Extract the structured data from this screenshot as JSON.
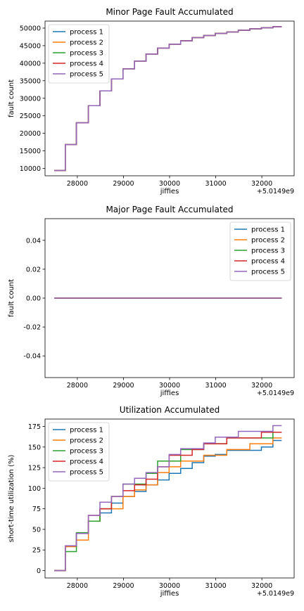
{
  "chart_data": [
    {
      "type": "line",
      "title": "Minor Page Fault Accumulated",
      "xlabel": "jiffies",
      "ylabel": "fault count",
      "offset_text": "+5.0149e9",
      "xlim": [
        27300,
        32700
      ],
      "ylim": [
        7900,
        52000
      ],
      "x_ticks": [
        28000,
        29000,
        30000,
        31000,
        32000
      ],
      "y_ticks": [
        10000,
        15000,
        20000,
        25000,
        30000,
        35000,
        40000,
        45000,
        50000
      ],
      "legend_position": "top-left",
      "grid": false,
      "step": "post",
      "series": [
        {
          "name": "process 1",
          "color": "#1f77b4"
        },
        {
          "name": "process 2",
          "color": "#ff7f0e"
        },
        {
          "name": "process 3",
          "color": "#2ca02c"
        },
        {
          "name": "process 4",
          "color": "#d62728"
        },
        {
          "name": "process 5",
          "color": "#9467bd"
        }
      ],
      "shared": {
        "x": [
          27500,
          27740,
          27980,
          28240,
          28490,
          28740,
          28990,
          29240,
          29490,
          29740,
          29990,
          30240,
          30490,
          30740,
          30990,
          31240,
          31490,
          31740,
          31990,
          32240,
          32430
        ],
        "y": [
          9400,
          16800,
          23000,
          27900,
          32100,
          35500,
          38400,
          40600,
          42600,
          44300,
          45400,
          46400,
          47300,
          47900,
          48500,
          48900,
          49400,
          49800,
          50100,
          50400,
          50400
        ]
      }
    },
    {
      "type": "line",
      "title": "Major Page Fault Accumulated",
      "xlabel": "jiffies",
      "ylabel": "fault count",
      "offset_text": "+5.0149e9",
      "xlim": [
        27300,
        32700
      ],
      "ylim": [
        -0.055,
        0.055
      ],
      "x_ticks": [
        28000,
        29000,
        30000,
        31000,
        32000
      ],
      "y_ticks": [
        -0.04,
        -0.02,
        0.0,
        0.02,
        0.04
      ],
      "y_tick_labels": [
        "-0.04",
        "-0.02",
        "0.00",
        "0.02",
        "0.04"
      ],
      "legend_position": "top-right",
      "grid": false,
      "series": [
        {
          "name": "process 1",
          "color": "#1f77b4"
        },
        {
          "name": "process 2",
          "color": "#ff7f0e"
        },
        {
          "name": "process 3",
          "color": "#2ca02c"
        },
        {
          "name": "process 4",
          "color": "#d62728"
        },
        {
          "name": "process 5",
          "color": "#9467bd"
        }
      ],
      "shared": {
        "x": [
          27500,
          32430
        ],
        "y": [
          0,
          0
        ]
      }
    },
    {
      "type": "line",
      "title": "Utilization Accumulated",
      "xlabel": "jiffies",
      "ylabel": "short-time utilization (%)",
      "offset_text": "+5.0149e9",
      "xlim": [
        27300,
        32700
      ],
      "ylim": [
        -9,
        184
      ],
      "x_ticks": [
        28000,
        29000,
        30000,
        31000,
        32000
      ],
      "y_ticks": [
        0,
        25,
        50,
        75,
        100,
        125,
        150,
        175
      ],
      "legend_position": "top-left",
      "grid": false,
      "step": "post",
      "x": [
        27500,
        27740,
        27980,
        28240,
        28490,
        28740,
        28990,
        29240,
        29490,
        29740,
        29990,
        30240,
        30490,
        30740,
        30990,
        31240,
        31490,
        31740,
        31990,
        32240,
        32430
      ],
      "series": [
        {
          "name": "process 1",
          "color": "#1f77b4",
          "values": [
            0,
            30,
            45,
            60,
            70,
            82,
            90,
            96,
            104,
            110,
            118,
            124,
            131,
            139,
            141,
            146,
            146,
            146,
            150,
            158,
            158
          ]
        },
        {
          "name": "process 2",
          "color": "#ff7f0e",
          "values": [
            0,
            29,
            37,
            60,
            75,
            75,
            90,
            98,
            104,
            119,
            126,
            133,
            133,
            140,
            140,
            147,
            147,
            154,
            154,
            161,
            161
          ]
        },
        {
          "name": "process 3",
          "color": "#2ca02c",
          "values": [
            0,
            23,
            46,
            60,
            75,
            90,
            105,
            105,
            118,
            133,
            133,
            147,
            147,
            154,
            154,
            161,
            161,
            161,
            161,
            168,
            168
          ]
        },
        {
          "name": "process 4",
          "color": "#d62728",
          "values": [
            0,
            30,
            45,
            67,
            75,
            90,
            97,
            104,
            111,
            126,
            140,
            140,
            147,
            154,
            154,
            161,
            161,
            161,
            168,
            168,
            168
          ]
        },
        {
          "name": "process 5",
          "color": "#9467bd",
          "values": [
            0,
            30,
            45,
            67,
            83,
            90,
            105,
            112,
            119,
            126,
            141,
            148,
            148,
            155,
            162,
            162,
            169,
            169,
            169,
            176,
            176
          ]
        }
      ]
    }
  ]
}
